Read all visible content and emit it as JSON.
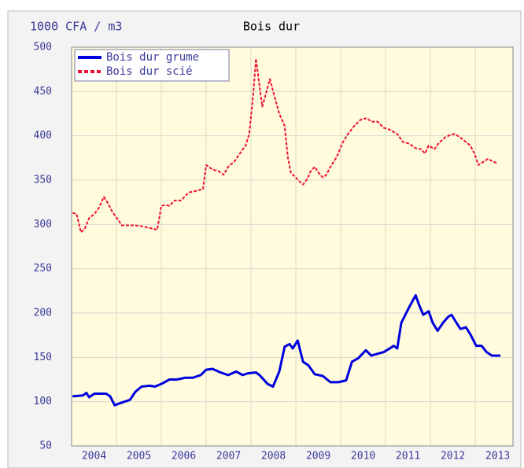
{
  "chart_data": {
    "type": "line",
    "title": "Bois dur",
    "y_label": "1000 CFA / m3",
    "xlim": [
      2004,
      2013.84
    ],
    "ylim": [
      50,
      500
    ],
    "yticks": [
      50,
      100,
      150,
      200,
      250,
      300,
      350,
      400,
      450,
      500
    ],
    "xticks": [
      {
        "value": 2004.5,
        "label": "2004"
      },
      {
        "value": 2005.5,
        "label": "2005"
      },
      {
        "value": 2006.5,
        "label": "2006"
      },
      {
        "value": 2007.5,
        "label": "2007"
      },
      {
        "value": 2008.5,
        "label": "2008"
      },
      {
        "value": 2009.5,
        "label": "2009"
      },
      {
        "value": 2010.5,
        "label": "2010"
      },
      {
        "value": 2011.5,
        "label": "2011"
      },
      {
        "value": 2012.5,
        "label": "2012"
      },
      {
        "value": 2013.5,
        "label": "2013"
      }
    ],
    "xgrid": [
      2005,
      2006,
      2007,
      2008,
      2009,
      2010,
      2011,
      2012,
      2013
    ],
    "grid": true,
    "legend": "upper left",
    "series": [
      {
        "name": "Bois dur grume",
        "color": "#0000dd",
        "style": "solid",
        "x": [
          2004.02,
          2004.25,
          2004.33,
          2004.39,
          2004.51,
          2004.77,
          2004.86,
          2004.96,
          2005.12,
          2005.3,
          2005.42,
          2005.56,
          2005.74,
          2005.86,
          2006.0,
          2006.18,
          2006.35,
          2006.53,
          2006.7,
          2006.88,
          2007.0,
          2007.14,
          2007.32,
          2007.49,
          2007.67,
          2007.81,
          2007.93,
          2008.11,
          2008.19,
          2008.37,
          2008.49,
          2008.63,
          2008.75,
          2008.86,
          2008.93,
          2009.04,
          2009.16,
          2009.28,
          2009.42,
          2009.6,
          2009.77,
          2009.95,
          2010.12,
          2010.25,
          2010.39,
          2010.56,
          2010.68,
          2010.82,
          2010.96,
          2011.09,
          2011.18,
          2011.26,
          2011.35,
          2011.53,
          2011.67,
          2011.74,
          2011.84,
          2011.96,
          2012.05,
          2012.16,
          2012.28,
          2012.4,
          2012.47,
          2012.58,
          2012.67,
          2012.79,
          2012.89,
          2013.02,
          2013.14,
          2013.25,
          2013.37,
          2013.49,
          2013.56
        ],
        "values": [
          106,
          107,
          110,
          105,
          109,
          109,
          106,
          96,
          99,
          102,
          111,
          117,
          118,
          117,
          120,
          125,
          125,
          127,
          127,
          130,
          136,
          137,
          133,
          130,
          134,
          130,
          132,
          133,
          130,
          120,
          117,
          134,
          162,
          165,
          160,
          169,
          145,
          141,
          131,
          129,
          122,
          122,
          124,
          145,
          149,
          158,
          152,
          154,
          156,
          160,
          163,
          160,
          189,
          207,
          220,
          210,
          198,
          202,
          189,
          180,
          189,
          196,
          198,
          189,
          182,
          184,
          176,
          163,
          163,
          156,
          152,
          152,
          152
        ]
      },
      {
        "name": "Bois dur scié",
        "color": "#ee1133",
        "style": "dashed",
        "x": [
          2004.02,
          2004.11,
          2004.21,
          2004.3,
          2004.39,
          2004.51,
          2004.6,
          2004.72,
          2004.81,
          2004.91,
          2005.04,
          2005.12,
          2005.25,
          2005.39,
          2005.56,
          2005.74,
          2005.91,
          2006.0,
          2006.09,
          2006.18,
          2006.3,
          2006.44,
          2006.61,
          2006.79,
          2006.93,
          2007.0,
          2007.14,
          2007.28,
          2007.39,
          2007.49,
          2007.63,
          2007.75,
          2007.88,
          2007.96,
          2008.05,
          2008.11,
          2008.19,
          2008.25,
          2008.33,
          2008.42,
          2008.51,
          2008.63,
          2008.75,
          2008.82,
          2008.89,
          2008.98,
          2009.07,
          2009.16,
          2009.25,
          2009.33,
          2009.42,
          2009.51,
          2009.6,
          2009.68,
          2009.77,
          2009.91,
          2010.04,
          2010.16,
          2010.3,
          2010.44,
          2010.58,
          2010.68,
          2010.82,
          2010.96,
          2011.09,
          2011.26,
          2011.39,
          2011.53,
          2011.67,
          2011.79,
          2011.88,
          2011.96,
          2012.09,
          2012.19,
          2012.32,
          2012.44,
          2012.54,
          2012.67,
          2012.79,
          2012.89,
          2012.98,
          2013.07,
          2013.19,
          2013.28,
          2013.39,
          2013.49
        ],
        "values": [
          313,
          312,
          291,
          296,
          307,
          312,
          318,
          331,
          324,
          314,
          305,
          299,
          299,
          299,
          298,
          296,
          294,
          321,
          322,
          321,
          327,
          327,
          336,
          338,
          340,
          367,
          362,
          360,
          356,
          365,
          371,
          380,
          389,
          402,
          447,
          487,
          456,
          433,
          447,
          464,
          447,
          425,
          411,
          376,
          358,
          354,
          349,
          345,
          351,
          360,
          365,
          358,
          353,
          356,
          365,
          376,
          392,
          402,
          411,
          418,
          420,
          416,
          416,
          409,
          407,
          402,
          393,
          391,
          386,
          385,
          380,
          389,
          385,
          392,
          398,
          401,
          402,
          398,
          393,
          389,
          380,
          367,
          371,
          374,
          371,
          369
        ]
      }
    ]
  }
}
